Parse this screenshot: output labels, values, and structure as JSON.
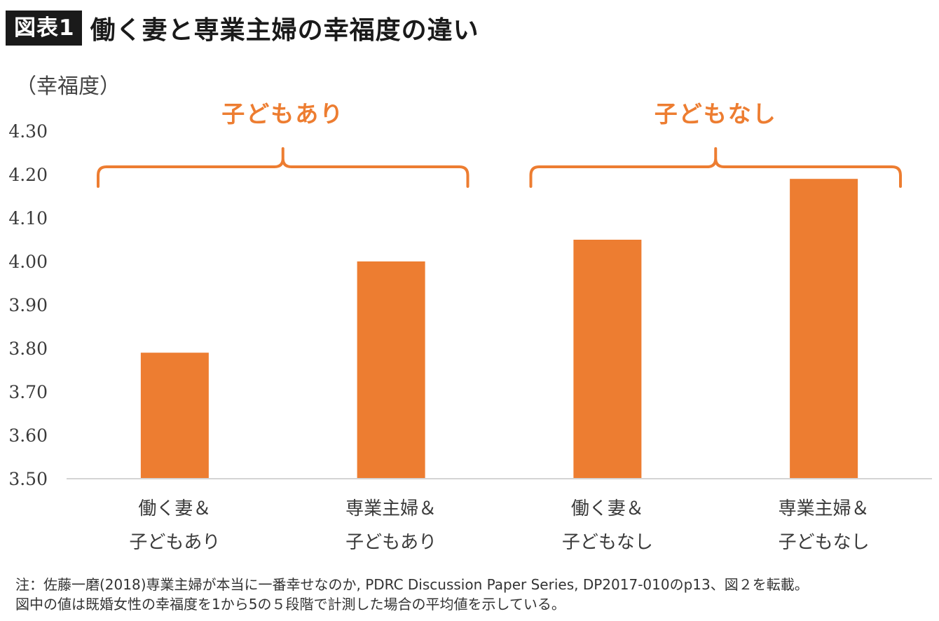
{
  "header": {
    "badge": "図表1",
    "title": "働く妻と専業主婦の幸福度の違い"
  },
  "chart_data": {
    "type": "bar",
    "ylabel": "（幸福度）",
    "ylim": [
      3.5,
      4.3
    ],
    "yticks": [
      "4.30",
      "4.20",
      "4.10",
      "4.00",
      "3.90",
      "3.80",
      "3.70",
      "3.60",
      "3.50"
    ],
    "categories": [
      [
        "働く妻＆",
        "子どもあり"
      ],
      [
        "専業主婦＆",
        "子どもあり"
      ],
      [
        "働く妻＆",
        "子どもなし"
      ],
      [
        "専業主婦＆",
        "子どもなし"
      ]
    ],
    "values": [
      3.79,
      4.0,
      4.05,
      4.19
    ],
    "bar_color": "#ed7d31",
    "groups": [
      {
        "label": "子どもあり",
        "categories": [
          0,
          1
        ]
      },
      {
        "label": "子どもなし",
        "categories": [
          2,
          3
        ]
      }
    ],
    "group_color": "#ed7d31",
    "grid": false,
    "legend": "none"
  },
  "note": {
    "line1": "注：佐藤一磨(2018)専業主婦が本当に一番幸せなのか, PDRC Discussion Paper Series, DP2017-010のp13、図２を転載。",
    "line2": "図中の値は既婚女性の幸福度を1から5の５段階で計測した場合の平均値を示している。"
  }
}
